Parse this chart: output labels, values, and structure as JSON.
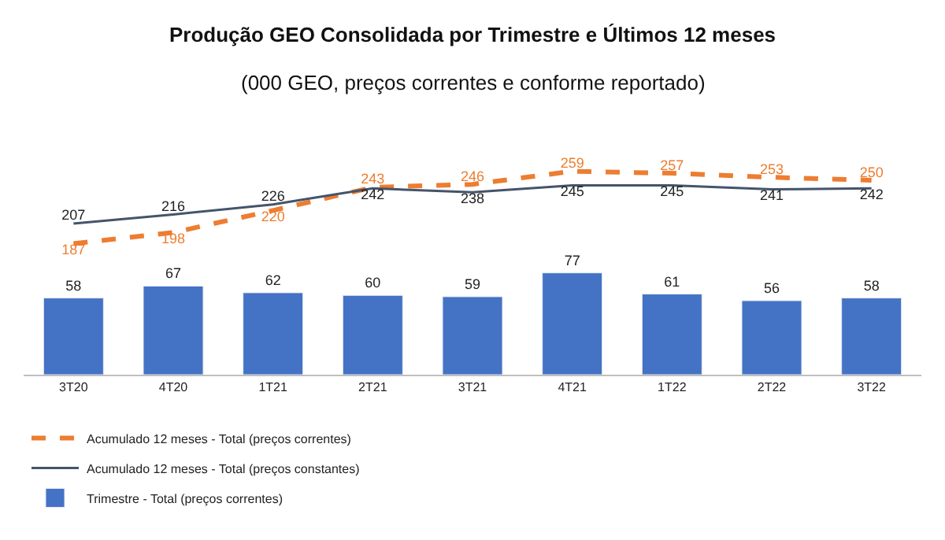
{
  "chart_data": [
    {
      "type": "line",
      "title": "Produção GEO Consolidada por Trimestre e Últimos 12 meses",
      "subtitle": "(000 GEO, preços correntes e conforme reportado)",
      "categories": [
        null,
        null,
        null,
        null,
        null,
        null,
        null,
        null,
        null
      ],
      "series": [
        {
          "name": "Acumulado 12 meses - Total (preços correntes)",
          "line_style": "dashed",
          "color": "#ed7d31",
          "values": [
            187,
            198,
            220,
            243,
            246,
            259,
            257,
            253,
            250
          ]
        },
        {
          "name": "Acumulado 12 meses - Total (preços constantes)",
          "line_style": "solid",
          "color": "#44546a",
          "values": [
            207,
            216,
            226,
            242,
            238,
            245,
            245,
            241,
            242
          ]
        }
      ],
      "data_labels": true,
      "legend": "bottom left"
    },
    {
      "type": "bar",
      "categories": [
        "3T20",
        "4T20",
        "1T21",
        "2T21",
        "3T21",
        "4T21",
        "1T22",
        "2T22",
        "3T22"
      ],
      "series": [
        {
          "name": "Trimestre - Total (preços correntes)",
          "color": "#4472c4",
          "values": [
            58,
            67,
            62,
            60,
            59,
            77,
            61,
            56,
            58
          ]
        }
      ],
      "data_labels": true,
      "legend": "bottom left"
    }
  ]
}
